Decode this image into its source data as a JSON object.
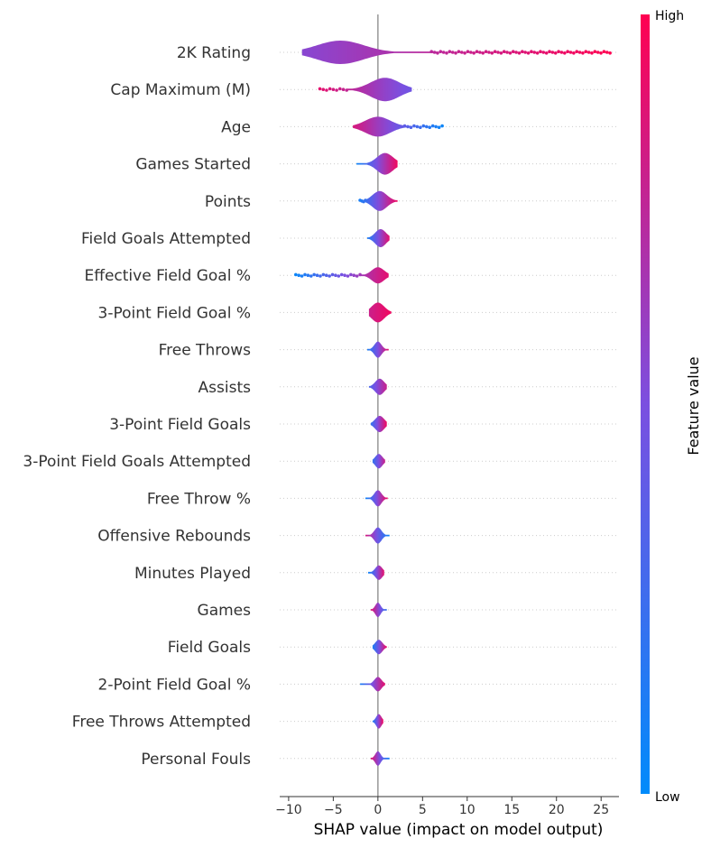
{
  "chart_data": {
    "type": "violin",
    "xlabel": "SHAP value (impact on model output)",
    "xlim": [
      -11,
      27
    ],
    "xticks": [
      -10,
      -5,
      0,
      5,
      10,
      15,
      20,
      25
    ],
    "grid": "dotted horizontal guides per feature",
    "colorbar": {
      "label": "Feature value",
      "high_label": "High",
      "low_label": "Low",
      "low_color": "#008bfb",
      "mid_color": "#7b4fe0",
      "high_color": "#ff0051"
    },
    "features": [
      {
        "name": "2K Rating",
        "min": -8.5,
        "max": 26,
        "peak": -4.2,
        "spread": 2.6,
        "height": 13,
        "tail": [
          6,
          26
        ],
        "color_low": 0.55,
        "color_high": 1.0
      },
      {
        "name": "Cap Maximum (M)",
        "min": -6.5,
        "max": 3.8,
        "peak": 0.8,
        "spread": 1.6,
        "height": 13,
        "tail": [
          -6.5,
          -3.5
        ],
        "color_low": 0.9,
        "color_high": 0.45
      },
      {
        "name": "Age",
        "min": -2.8,
        "max": 7.2,
        "peak": 0.0,
        "spread": 1.4,
        "height": 11,
        "tail": [
          3,
          7.2
        ],
        "color_low": 0.85,
        "color_high": 0.05
      },
      {
        "name": "Games Started",
        "min": -2.4,
        "max": 2.2,
        "peak": 0.8,
        "spread": 0.9,
        "height": 12,
        "tail": [],
        "color_low": 0.05,
        "color_high": 0.95
      },
      {
        "name": "Points",
        "min": -2.0,
        "max": 2.2,
        "peak": 0.2,
        "spread": 0.8,
        "height": 11,
        "tail": [
          -2.0,
          -1.4
        ],
        "color_low": 0.1,
        "color_high": 0.95
      },
      {
        "name": "Field Goals Attempted",
        "min": -1.2,
        "max": 1.3,
        "peak": 0.3,
        "spread": 0.6,
        "height": 10,
        "tail": [],
        "color_low": 0.1,
        "color_high": 0.9
      },
      {
        "name": "Effective Field Goal %",
        "min": -9.2,
        "max": 1.2,
        "peak": 0.0,
        "spread": 0.7,
        "height": 9,
        "tail": [
          -9.2,
          -2.0
        ],
        "color_low": 0.05,
        "color_high": 0.9
      },
      {
        "name": "3-Point Field Goal %",
        "min": -1.0,
        "max": 1.5,
        "peak": 0.0,
        "spread": 0.7,
        "height": 11,
        "tail": [],
        "color_low": 0.8,
        "color_high": 0.95
      },
      {
        "name": "Free Throws",
        "min": -1.2,
        "max": 1.2,
        "peak": 0.0,
        "spread": 0.4,
        "height": 9,
        "tail": [],
        "color_low": 0.1,
        "color_high": 0.9
      },
      {
        "name": "Assists",
        "min": -1.0,
        "max": 1.0,
        "peak": 0.2,
        "spread": 0.5,
        "height": 9,
        "tail": [],
        "color_low": 0.3,
        "color_high": 0.8
      },
      {
        "name": "3-Point Field Goals",
        "min": -0.8,
        "max": 1.0,
        "peak": 0.2,
        "spread": 0.5,
        "height": 9,
        "tail": [],
        "color_low": 0.2,
        "color_high": 0.95
      },
      {
        "name": "3-Point Field Goals Attempted",
        "min": -0.6,
        "max": 0.8,
        "peak": 0.1,
        "spread": 0.4,
        "height": 8,
        "tail": [],
        "color_low": 0.2,
        "color_high": 0.8
      },
      {
        "name": "Free Throw %",
        "min": -1.4,
        "max": 1.1,
        "peak": 0.0,
        "spread": 0.4,
        "height": 9,
        "tail": [],
        "color_low": 0.05,
        "color_high": 0.95
      },
      {
        "name": "Offensive Rebounds",
        "min": -1.4,
        "max": 1.3,
        "peak": 0.0,
        "spread": 0.4,
        "height": 9,
        "tail": [],
        "color_low": 0.85,
        "color_high": 0.05
      },
      {
        "name": "Minutes Played",
        "min": -1.1,
        "max": 0.7,
        "peak": 0.1,
        "spread": 0.4,
        "height": 8,
        "tail": [],
        "color_low": 0.05,
        "color_high": 0.9
      },
      {
        "name": "Games",
        "min": -0.8,
        "max": 1.0,
        "peak": 0.0,
        "spread": 0.3,
        "height": 8,
        "tail": [],
        "color_low": 0.9,
        "color_high": 0.2
      },
      {
        "name": "Field Goals",
        "min": -0.6,
        "max": 1.0,
        "peak": 0.1,
        "spread": 0.4,
        "height": 8,
        "tail": [],
        "color_low": 0.1,
        "color_high": 0.95
      },
      {
        "name": "2-Point Field Goal %",
        "min": -2.0,
        "max": 0.8,
        "peak": 0.0,
        "spread": 0.4,
        "height": 8,
        "tail": [],
        "color_low": 0.1,
        "color_high": 0.9
      },
      {
        "name": "Free Throws Attempted",
        "min": -0.6,
        "max": 0.6,
        "peak": 0.1,
        "spread": 0.3,
        "height": 8,
        "tail": [],
        "color_low": 0.1,
        "color_high": 0.95
      },
      {
        "name": "Personal Fouls",
        "min": -0.8,
        "max": 1.3,
        "peak": 0.0,
        "spread": 0.3,
        "height": 8,
        "tail": [],
        "color_low": 0.9,
        "color_high": 0.05
      }
    ]
  }
}
